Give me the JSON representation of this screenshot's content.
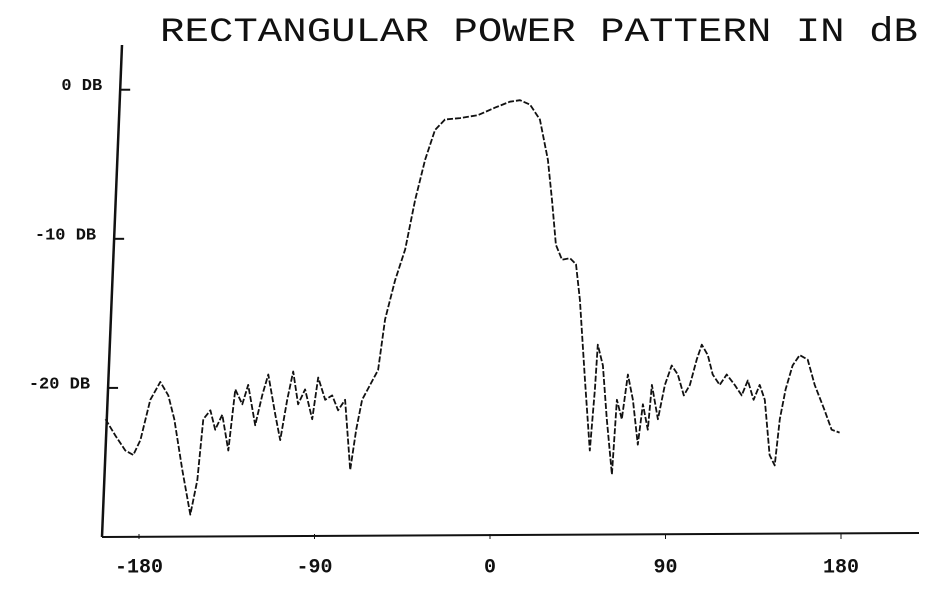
{
  "chart_data": {
    "type": "line",
    "title": "RECTANGULAR POWER PATTERN IN dB",
    "xlim": [
      -200,
      220
    ],
    "ylim": [
      -30,
      3
    ],
    "xticks": [
      -180,
      -90,
      0,
      90,
      180
    ],
    "yticks": [
      {
        "value": 0,
        "label": "0 DB"
      },
      {
        "value": -10,
        "label": "-10 DB"
      },
      {
        "value": -20,
        "label": "-20 DB"
      }
    ],
    "grid": false,
    "x": [
      -197.2,
      -192.1,
      -187.0,
      -182.9,
      -179.3,
      -174.2,
      -169.1,
      -165.0,
      -161.9,
      -157.8,
      -153.7,
      -150.1,
      -147.0,
      -143.4,
      -140.9,
      -137.3,
      -134.2,
      -130.6,
      -127.0,
      -124.0,
      -120.4,
      -116.8,
      -113.7,
      -110.1,
      -107.6,
      -104.0,
      -100.9,
      -98.4,
      -94.8,
      -91.2,
      -88.1,
      -84.5,
      -80.9,
      -77.9,
      -74.3,
      -71.7,
      -68.6,
      -65.6,
      -61.5,
      -57.4,
      -53.8,
      -48.7,
      -43.5,
      -38.4,
      -33.3,
      -28.2,
      -23.1,
      -15.4,
      -6.1,
      2.6,
      10.2,
      15.4,
      20.5,
      25.6,
      29.7,
      31.8,
      33.8,
      36.9,
      41.0,
      44.1,
      46.1,
      48.7,
      51.2,
      53.8,
      55.3,
      57.9,
      59.9,
      62.5,
      65.1,
      67.6,
      70.7,
      73.3,
      75.8,
      78.4,
      80.9,
      83.0,
      86.1,
      89.7,
      93.2,
      96.3,
      99.4,
      102.5,
      106.0,
      108.6,
      111.7,
      114.2,
      117.8,
      121.4,
      125.5,
      129.1,
      132.2,
      135.2,
      138.3,
      140.9,
      143.4,
      146.0,
      148.6,
      151.6,
      155.2,
      158.8,
      162.9,
      166.5,
      171.6,
      175.2,
      179.3
    ],
    "series": [
      {
        "color": "#111111",
        "values": [
          -22.1,
          -23.2,
          -24.2,
          -24.5,
          -23.5,
          -20.8,
          -19.6,
          -20.5,
          -22.1,
          -25.5,
          -28.5,
          -26.2,
          -22.1,
          -21.5,
          -22.8,
          -21.8,
          -24.2,
          -20.1,
          -21.1,
          -19.8,
          -22.5,
          -20.5,
          -19.1,
          -21.8,
          -23.5,
          -20.8,
          -18.9,
          -21.1,
          -20.1,
          -22.1,
          -19.3,
          -20.8,
          -20.5,
          -21.5,
          -20.8,
          -25.5,
          -22.8,
          -20.8,
          -19.8,
          -18.8,
          -15.4,
          -12.8,
          -10.7,
          -7.4,
          -4.7,
          -2.7,
          -2.0,
          -1.9,
          -1.7,
          -1.2,
          -0.8,
          -0.7,
          -1.0,
          -2.0,
          -4.7,
          -7.4,
          -10.4,
          -11.4,
          -11.3,
          -11.7,
          -14.1,
          -19.5,
          -24.2,
          -20.1,
          -17.1,
          -18.5,
          -22.1,
          -25.8,
          -20.8,
          -22.1,
          -19.1,
          -20.8,
          -23.8,
          -21.1,
          -22.8,
          -19.8,
          -22.1,
          -19.8,
          -18.5,
          -19.1,
          -20.5,
          -19.8,
          -18.1,
          -17.1,
          -17.8,
          -19.1,
          -19.8,
          -19.1,
          -19.8,
          -20.5,
          -19.5,
          -20.8,
          -19.8,
          -20.8,
          -24.5,
          -25.2,
          -22.1,
          -20.1,
          -18.5,
          -17.8,
          -18.1,
          -19.8,
          -21.5,
          -22.8,
          -23.0
        ]
      }
    ]
  }
}
